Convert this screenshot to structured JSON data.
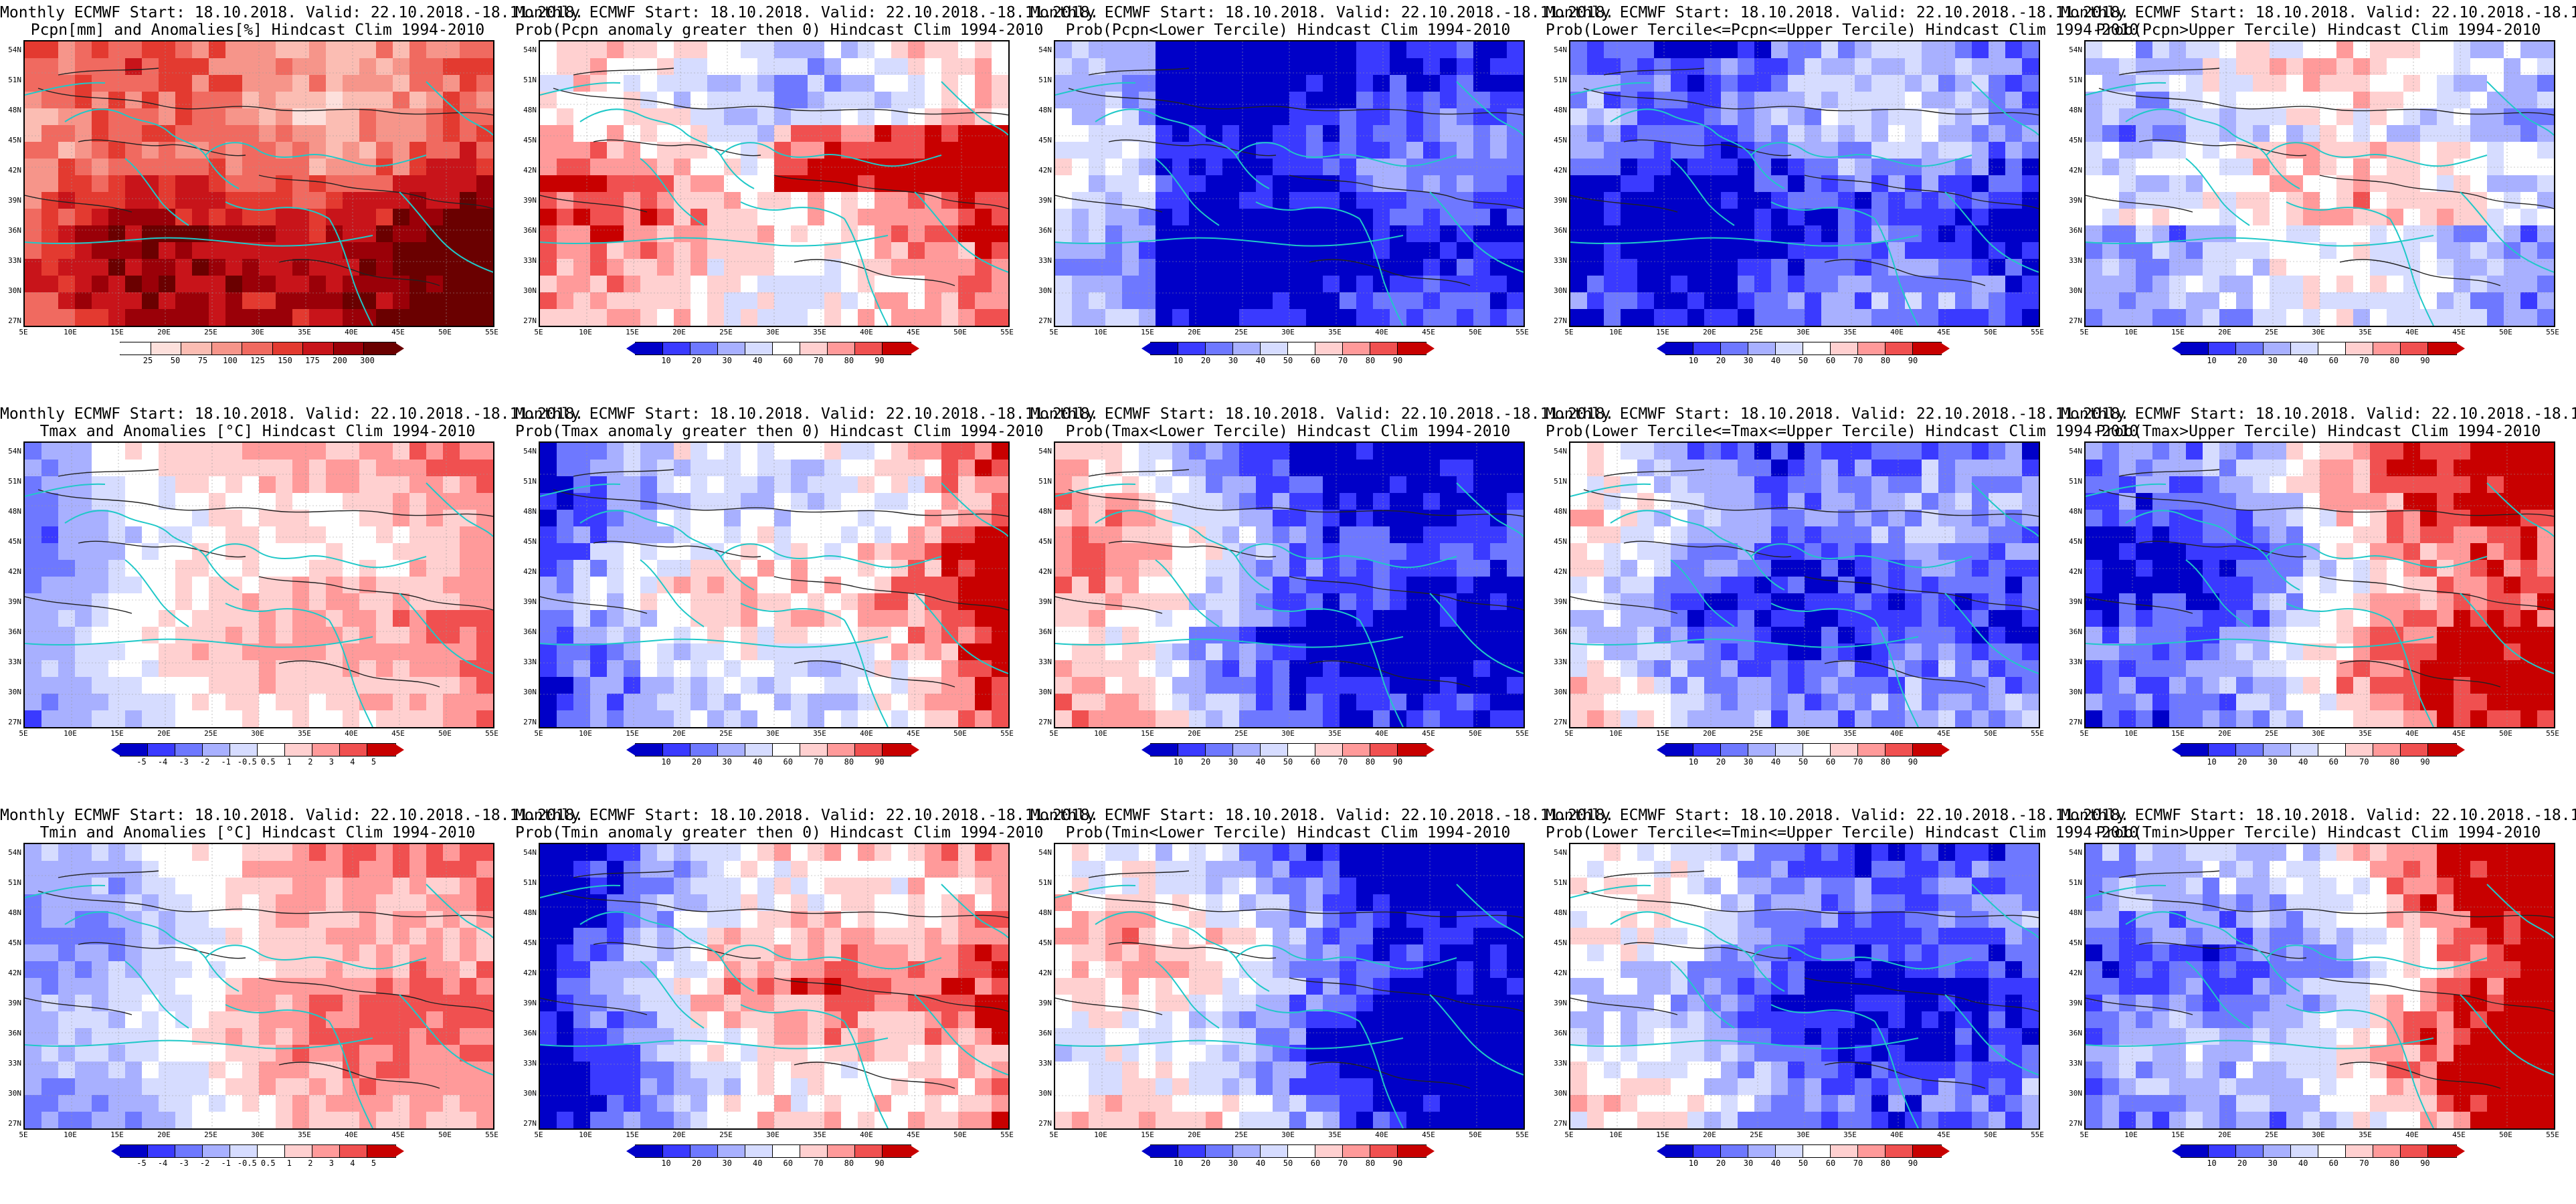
{
  "title_row1": "Monthly ECMWF Start: 18.10.2018. Valid: 22.10.2018.-18.11.2018.",
  "lat_labels": [
    "54N",
    "51N",
    "48N",
    "45N",
    "42N",
    "39N",
    "36N",
    "33N",
    "30N",
    "27N"
  ],
  "lon_labels": [
    "5E",
    "10E",
    "15E",
    "20E",
    "25E",
    "30E",
    "35E",
    "40E",
    "45E",
    "50E",
    "55E"
  ],
  "panels": [
    {
      "title2": "Pcpn[mm] and Anomalies[%] Hindcast Clim 1994-2010",
      "var": "pcpn",
      "kind": "anom",
      "ticks": [
        "25",
        "50",
        "75",
        "100",
        "125",
        "150",
        "175",
        "200",
        "300"
      ],
      "colors": [
        "#ffffff",
        "#fde0dc",
        "#fbbdb3",
        "#f6958a",
        "#f06a60",
        "#e33a30",
        "#c8141a",
        "#9a0008",
        "#6a0000"
      ]
    },
    {
      "title2": "Prob(Pcpn anomaly greater then 0) Hindcast Clim 1994-2010",
      "var": "pcpn",
      "kind": "prob",
      "ticks": [
        "10",
        "20",
        "30",
        "40",
        "60",
        "70",
        "80",
        "90"
      ],
      "colors": [
        "#0000c8",
        "#3a3aff",
        "#6e78ff",
        "#a8b0ff",
        "#d6dcff",
        "#ffffff",
        "#ffd0d0",
        "#ff9a9a",
        "#f05050",
        "#c80000"
      ]
    },
    {
      "title2": "Prob(Pcpn<Lower Tercile) Hindcast Clim 1994-2010",
      "var": "pcpn",
      "kind": "lower",
      "ticks": [
        "10",
        "20",
        "30",
        "40",
        "50",
        "60",
        "70",
        "80",
        "90"
      ],
      "colors": [
        "#0000c8",
        "#3a3aff",
        "#6e78ff",
        "#a8b0ff",
        "#d6dcff",
        "#ffffff",
        "#ffd0d0",
        "#ff9a9a",
        "#f05050",
        "#c80000"
      ]
    },
    {
      "title2": "Prob(Lower Tercile<=Pcpn<=Upper Tercile) Hindcast Clim 1994-2010",
      "var": "pcpn",
      "kind": "mid",
      "ticks": [
        "10",
        "20",
        "30",
        "40",
        "50",
        "60",
        "70",
        "80",
        "90"
      ],
      "colors": [
        "#0000c8",
        "#3a3aff",
        "#6e78ff",
        "#a8b0ff",
        "#d6dcff",
        "#ffffff",
        "#ffd0d0",
        "#ff9a9a",
        "#f05050",
        "#c80000"
      ]
    },
    {
      "title2": "Prob(Pcpn>Upper Tercile) Hindcast Clim 1994-2010",
      "var": "pcpn",
      "kind": "upper",
      "ticks": [
        "10",
        "20",
        "30",
        "40",
        "60",
        "70",
        "80",
        "90"
      ],
      "colors": [
        "#0000c8",
        "#3a3aff",
        "#6e78ff",
        "#a8b0ff",
        "#d6dcff",
        "#ffffff",
        "#ffd0d0",
        "#ff9a9a",
        "#f05050",
        "#c80000"
      ]
    },
    {
      "title2": "Tmax and Anomalies [°C] Hindcast Clim 1994-2010",
      "var": "tmax",
      "kind": "anom",
      "ticks": [
        "-5",
        "-4",
        "-3",
        "-2",
        "-1",
        "-0.5",
        "0.5",
        "1",
        "2",
        "3",
        "4",
        "5"
      ],
      "colors": [
        "#0000c8",
        "#3a3aff",
        "#6e78ff",
        "#a8b0ff",
        "#d6dcff",
        "#ffffff",
        "#ffd0d0",
        "#ff9a9a",
        "#f05050",
        "#c80000"
      ]
    },
    {
      "title2": "Prob(Tmax anomaly greater then 0) Hindcast Clim 1994-2010",
      "var": "tmax",
      "kind": "prob",
      "ticks": [
        "10",
        "20",
        "30",
        "40",
        "60",
        "70",
        "80",
        "90"
      ],
      "colors": [
        "#0000c8",
        "#3a3aff",
        "#6e78ff",
        "#a8b0ff",
        "#d6dcff",
        "#ffffff",
        "#ffd0d0",
        "#ff9a9a",
        "#f05050",
        "#c80000"
      ]
    },
    {
      "title2": "Prob(Tmax<Lower Tercile) Hindcast Clim 1994-2010",
      "var": "tmax",
      "kind": "lower",
      "ticks": [
        "10",
        "20",
        "30",
        "40",
        "50",
        "60",
        "70",
        "80",
        "90"
      ],
      "colors": [
        "#0000c8",
        "#3a3aff",
        "#6e78ff",
        "#a8b0ff",
        "#d6dcff",
        "#ffffff",
        "#ffd0d0",
        "#ff9a9a",
        "#f05050",
        "#c80000"
      ]
    },
    {
      "title2": "Prob(Lower Tercile<=Tmax<=Upper Tercile) Hindcast Clim 1994-2010",
      "var": "tmax",
      "kind": "mid",
      "ticks": [
        "10",
        "20",
        "30",
        "40",
        "50",
        "60",
        "70",
        "80",
        "90"
      ],
      "colors": [
        "#0000c8",
        "#3a3aff",
        "#6e78ff",
        "#a8b0ff",
        "#d6dcff",
        "#ffffff",
        "#ffd0d0",
        "#ff9a9a",
        "#f05050",
        "#c80000"
      ]
    },
    {
      "title2": "Prob(Tmax>Upper Tercile) Hindcast Clim 1994-2010",
      "var": "tmax",
      "kind": "upper",
      "ticks": [
        "10",
        "20",
        "30",
        "40",
        "60",
        "70",
        "80",
        "90"
      ],
      "colors": [
        "#0000c8",
        "#3a3aff",
        "#6e78ff",
        "#a8b0ff",
        "#d6dcff",
        "#ffffff",
        "#ffd0d0",
        "#ff9a9a",
        "#f05050",
        "#c80000"
      ]
    },
    {
      "title2": "Tmin and Anomalies [°C] Hindcast Clim 1994-2010",
      "var": "tmin",
      "kind": "anom",
      "ticks": [
        "-5",
        "-4",
        "-3",
        "-2",
        "-1",
        "-0.5",
        "0.5",
        "1",
        "2",
        "3",
        "4",
        "5"
      ],
      "colors": [
        "#0000c8",
        "#3a3aff",
        "#6e78ff",
        "#a8b0ff",
        "#d6dcff",
        "#ffffff",
        "#ffd0d0",
        "#ff9a9a",
        "#f05050",
        "#c80000"
      ]
    },
    {
      "title2": "Prob(Tmin anomaly greater then 0) Hindcast Clim 1994-2010",
      "var": "tmin",
      "kind": "prob",
      "ticks": [
        "10",
        "20",
        "30",
        "40",
        "60",
        "70",
        "80",
        "90"
      ],
      "colors": [
        "#0000c8",
        "#3a3aff",
        "#6e78ff",
        "#a8b0ff",
        "#d6dcff",
        "#ffffff",
        "#ffd0d0",
        "#ff9a9a",
        "#f05050",
        "#c80000"
      ]
    },
    {
      "title2": "Prob(Tmin<Lower Tercile) Hindcast Clim 1994-2010",
      "var": "tmin",
      "kind": "lower",
      "ticks": [
        "10",
        "20",
        "30",
        "40",
        "50",
        "60",
        "70",
        "80",
        "90"
      ],
      "colors": [
        "#0000c8",
        "#3a3aff",
        "#6e78ff",
        "#a8b0ff",
        "#d6dcff",
        "#ffffff",
        "#ffd0d0",
        "#ff9a9a",
        "#f05050",
        "#c80000"
      ]
    },
    {
      "title2": "Prob(Lower Tercile<=Tmin<=Upper Tercile) Hindcast Clim 1994-2010",
      "var": "tmin",
      "kind": "mid",
      "ticks": [
        "10",
        "20",
        "30",
        "40",
        "50",
        "60",
        "70",
        "80",
        "90"
      ],
      "colors": [
        "#0000c8",
        "#3a3aff",
        "#6e78ff",
        "#a8b0ff",
        "#d6dcff",
        "#ffffff",
        "#ffd0d0",
        "#ff9a9a",
        "#f05050",
        "#c80000"
      ]
    },
    {
      "title2": "Prob(Tmin>Upper Tercile) Hindcast Clim 1994-2010",
      "var": "tmin",
      "kind": "upper",
      "ticks": [
        "10",
        "20",
        "30",
        "40",
        "60",
        "70",
        "80",
        "90"
      ],
      "colors": [
        "#0000c8",
        "#3a3aff",
        "#6e78ff",
        "#a8b0ff",
        "#d6dcff",
        "#ffffff",
        "#ffd0d0",
        "#ff9a9a",
        "#f05050",
        "#c80000"
      ]
    }
  ]
}
